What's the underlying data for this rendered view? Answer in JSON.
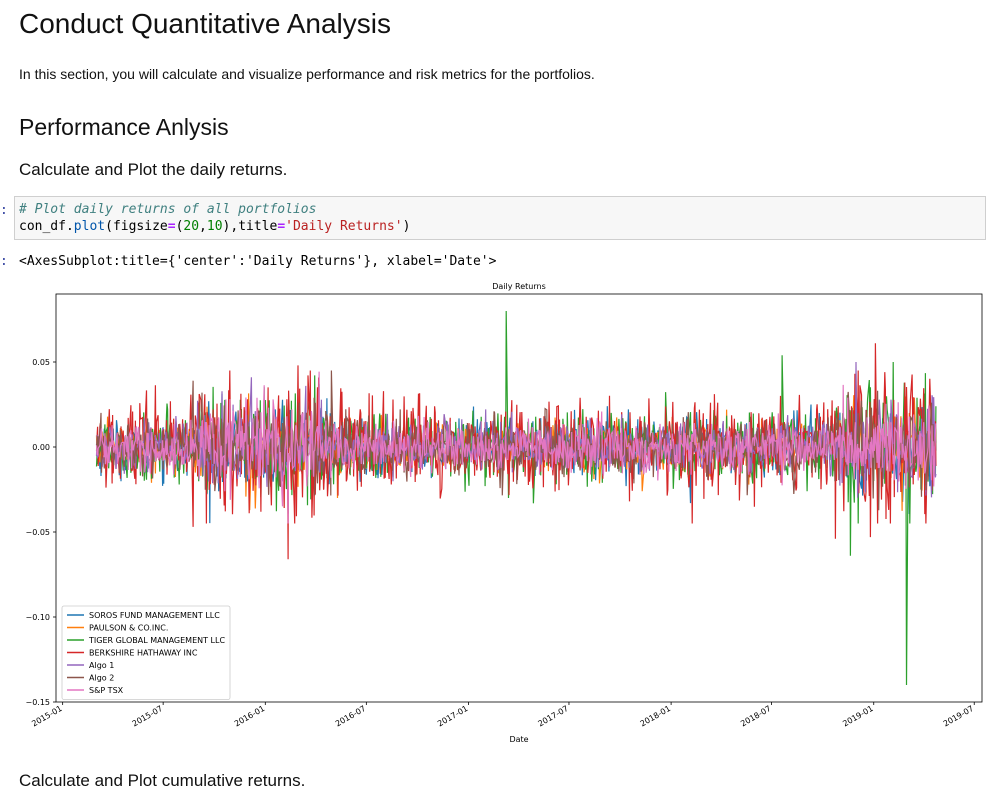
{
  "notebook": {
    "title": "Conduct Quantitative Analysis",
    "intro": "In this section, you will calculate and visualize performance and risk metrics for the portfolios.",
    "section": "Performance Anlysis",
    "subsection1": "Calculate and Plot the daily returns.",
    "subsection2": "Calculate and Plot cumulative returns.",
    "prompt_in": ":",
    "prompt_out": ":"
  },
  "code_cell": {
    "comment": "# Plot daily returns of all portfolios",
    "var": "con_df",
    "dot": ".",
    "method": "plot",
    "open": "(",
    "arg1": "figsize",
    "eq1": "=",
    "val1_open": "(",
    "num1": "20",
    "comma1": ",",
    "num2": "10",
    "val1_close": ")",
    "comma2": ",",
    "arg2": "title",
    "eq2": "=",
    "str": "'Daily Returns'",
    "close": ")"
  },
  "output_text": "<AxesSubplot:title={'center':'Daily Returns'}, xlabel='Date'>",
  "chart_data": {
    "type": "line",
    "title": "Daily Returns",
    "xlabel": "Date",
    "ylabel": "",
    "x_range": [
      "2015-03-03",
      "2019-04-23"
    ],
    "xlim": [
      "2014-12-20",
      "2019-07-15"
    ],
    "ylim": [
      -0.15,
      0.09
    ],
    "xticks": [
      "2015-01",
      "2015-07",
      "2016-01",
      "2016-07",
      "2017-01",
      "2017-07",
      "2018-01",
      "2018-07",
      "2019-01",
      "2019-07"
    ],
    "yticks": [
      "0.05",
      "0.00",
      "−0.05",
      "−0.10",
      "−0.15"
    ],
    "ytick_values": [
      0.05,
      0.0,
      -0.05,
      -0.1,
      -0.15
    ],
    "legend_position": "lower-left",
    "series": [
      {
        "name": "SOROS FUND MANAGEMENT LLC",
        "color": "#1f77b4",
        "volatility": 0.008,
        "extremes": [
          {
            "date": "2018-02-05",
            "value": -0.033
          },
          {
            "date": "2018-09-10",
            "value": 0.025
          }
        ]
      },
      {
        "name": "PAULSON & CO.INC.",
        "color": "#ff7f0e",
        "volatility": 0.007,
        "extremes": [
          {
            "date": "2016-05-10",
            "value": -0.03
          },
          {
            "date": "2017-11-10",
            "value": -0.026
          }
        ]
      },
      {
        "name": "TIGER GLOBAL MANAGEMENT LLC",
        "color": "#2ca02c",
        "volatility": 0.01,
        "extremes": [
          {
            "date": "2017-03-10",
            "value": 0.08
          },
          {
            "date": "2017-03-14",
            "value": -0.03
          },
          {
            "date": "2018-07-20",
            "value": 0.054
          },
          {
            "date": "2018-11-20",
            "value": -0.064
          },
          {
            "date": "2019-02-05",
            "value": 0.05
          },
          {
            "date": "2019-03-01",
            "value": -0.14
          }
        ]
      },
      {
        "name": "BERKSHIRE HATHAWAY INC",
        "color": "#d62728",
        "volatility": 0.013,
        "extremes": [
          {
            "date": "2015-08-24",
            "value": -0.047
          },
          {
            "date": "2016-02-11",
            "value": -0.066
          },
          {
            "date": "2016-02-29",
            "value": 0.048
          },
          {
            "date": "2018-02-08",
            "value": -0.045
          },
          {
            "date": "2018-10-24",
            "value": -0.054
          },
          {
            "date": "2018-12-26",
            "value": -0.053
          },
          {
            "date": "2019-01-04",
            "value": 0.061
          }
        ]
      },
      {
        "name": "Algo 1",
        "color": "#9467bd",
        "volatility": 0.007,
        "extremes": [
          {
            "date": "2015-12-07",
            "value": 0.041
          },
          {
            "date": "2018-11-30",
            "value": 0.05
          }
        ]
      },
      {
        "name": "Algo 2",
        "color": "#8c564b",
        "volatility": 0.008,
        "extremes": [
          {
            "date": "2015-08-24",
            "value": 0.039
          }
        ]
      },
      {
        "name": "S&P TSX",
        "color": "#e377c2",
        "volatility": 0.007,
        "extremes": [
          {
            "date": "2016-01-15",
            "value": 0.028
          }
        ]
      }
    ]
  }
}
